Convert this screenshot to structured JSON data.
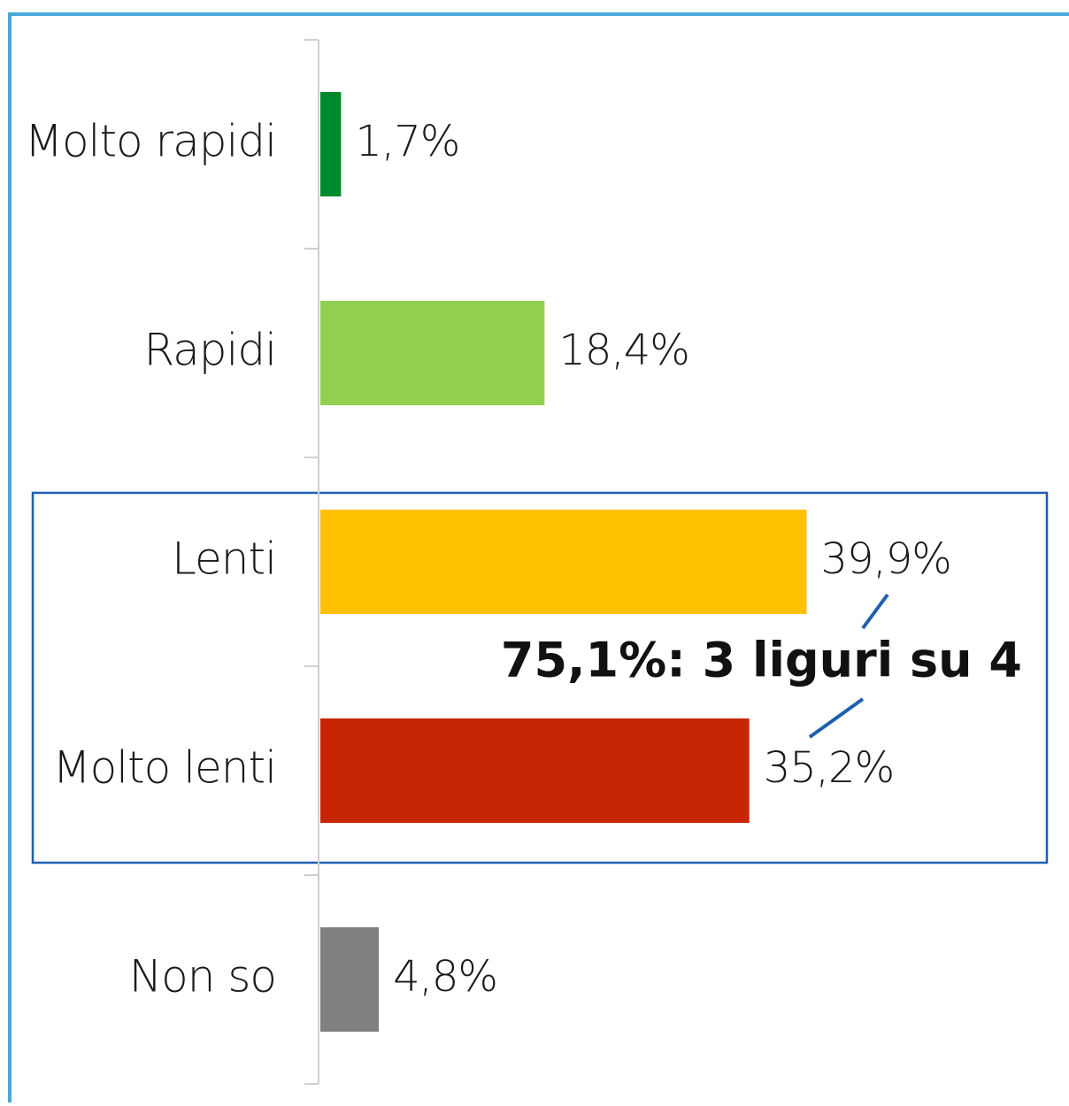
{
  "chart_data": {
    "type": "bar",
    "orientation": "horizontal",
    "categories": [
      "Molto rapidi",
      "Rapidi",
      "Lenti",
      "Molto lenti",
      "Non so"
    ],
    "values": [
      1.7,
      18.4,
      39.9,
      35.2,
      4.8
    ],
    "value_labels": [
      "1,7%",
      "18,4%",
      "39,9%",
      "35,2%",
      "4,8%"
    ],
    "colors": [
      "#008a2e",
      "#92d050",
      "#ffc000",
      "#c82506",
      "#808080"
    ],
    "annotation": "75,1%: 3 liguri su 4"
  }
}
